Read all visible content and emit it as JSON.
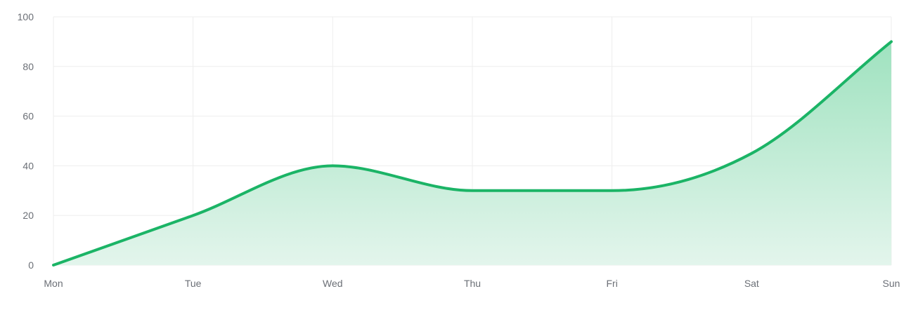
{
  "chart_data": {
    "type": "area",
    "title": "",
    "xlabel": "",
    "ylabel": "",
    "categories": [
      "Mon",
      "Tue",
      "Wed",
      "Thu",
      "Fri",
      "Sat",
      "Sun"
    ],
    "series": [
      {
        "values": [
          0,
          20,
          40,
          30,
          30,
          45,
          90
        ]
      }
    ],
    "ylim": [
      0,
      100
    ],
    "yticks": [
      0,
      20,
      40,
      60,
      80,
      100
    ],
    "smooth": true,
    "grid": true,
    "legend": "none",
    "colors": {
      "line": "#1bb466",
      "fill_top": "#9fe2bf",
      "fill_bottom": "#e3f5ec",
      "grid": "#eeeeee",
      "tick_text": "#6b6f76"
    }
  }
}
